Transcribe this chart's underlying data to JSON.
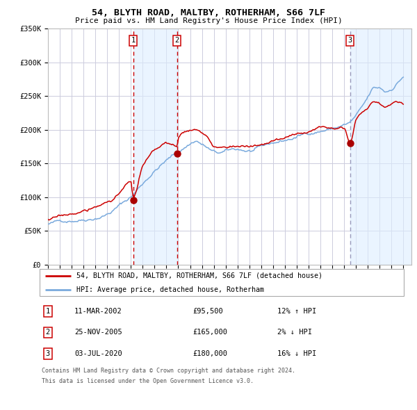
{
  "title": "54, BLYTH ROAD, MALTBY, ROTHERHAM, S66 7LF",
  "subtitle": "Price paid vs. HM Land Registry's House Price Index (HPI)",
  "x_start_year": 1995,
  "x_end_year": 2025,
  "y_min": 0,
  "y_max": 350000,
  "y_ticks": [
    0,
    50000,
    100000,
    150000,
    200000,
    250000,
    300000,
    350000
  ],
  "y_tick_labels": [
    "£0",
    "£50K",
    "£100K",
    "£150K",
    "£200K",
    "£250K",
    "£300K",
    "£350K"
  ],
  "sales": [
    {
      "date_decimal": 2002.19,
      "price": 95500,
      "label": "1"
    },
    {
      "date_decimal": 2005.9,
      "price": 165000,
      "label": "2"
    },
    {
      "date_decimal": 2020.5,
      "price": 180000,
      "label": "3"
    }
  ],
  "sale_dashed_color_1_2": "#cc0000",
  "sale_dashed_color_3": "#9999bb",
  "shade_color": "#ddeeff",
  "shade_alpha": 0.6,
  "hpi_line_color": "#7aaadd",
  "price_line_color": "#cc0000",
  "dot_color": "#aa0000",
  "grid_color": "#ccccdd",
  "background_color": "#ffffff",
  "legend_entry1": "54, BLYTH ROAD, MALTBY, ROTHERHAM, S66 7LF (detached house)",
  "legend_entry2": "HPI: Average price, detached house, Rotherham",
  "table_rows": [
    {
      "num": "1",
      "date": "11-MAR-2002",
      "price": "£95,500",
      "hpi": "12% ↑ HPI"
    },
    {
      "num": "2",
      "date": "25-NOV-2005",
      "price": "£165,000",
      "hpi": "2% ↓ HPI"
    },
    {
      "num": "3",
      "date": "03-JUL-2020",
      "price": "£180,000",
      "hpi": "16% ↓ HPI"
    }
  ],
  "footnote1": "Contains HM Land Registry data © Crown copyright and database right 2024.",
  "footnote2": "This data is licensed under the Open Government Licence v3.0.",
  "hpi_waypoints_x": [
    1995.0,
    1996.0,
    1997.0,
    1998.0,
    1999.0,
    2000.0,
    2001.0,
    2002.0,
    2003.0,
    2004.0,
    2005.0,
    2006.0,
    2007.0,
    2007.5,
    2008.0,
    2008.5,
    2009.0,
    2009.5,
    2010.0,
    2011.0,
    2012.0,
    2013.0,
    2014.0,
    2015.0,
    2016.0,
    2017.0,
    2018.0,
    2019.0,
    2020.0,
    2020.5,
    2021.0,
    2021.5,
    2022.0,
    2022.5,
    2023.0,
    2023.5,
    2024.0,
    2024.5,
    2025.0
  ],
  "hpi_waypoints_y": [
    60000,
    63000,
    67000,
    71000,
    76000,
    83000,
    95000,
    108000,
    128000,
    148000,
    163000,
    175000,
    188000,
    193000,
    188000,
    182000,
    175000,
    173000,
    174000,
    176000,
    174000,
    176000,
    181000,
    185000,
    190000,
    196000,
    201000,
    205000,
    210000,
    213000,
    222000,
    232000,
    245000,
    258000,
    258000,
    253000,
    258000,
    268000,
    278000
  ],
  "price_waypoints_x": [
    1995.0,
    1996.0,
    1997.0,
    1998.0,
    1999.0,
    2000.0,
    2001.0,
    2002.0,
    2002.19,
    2003.0,
    2004.0,
    2005.0,
    2005.9,
    2006.0,
    2006.5,
    2007.0,
    2007.5,
    2008.0,
    2008.5,
    2009.0,
    2009.5,
    2010.0,
    2011.0,
    2012.0,
    2013.0,
    2014.0,
    2015.0,
    2016.0,
    2017.0,
    2018.0,
    2019.0,
    2020.0,
    2020.5,
    2021.0,
    2022.0,
    2022.5,
    2023.0,
    2023.5,
    2024.0,
    2024.5,
    2025.0
  ],
  "price_waypoints_y": [
    67000,
    70000,
    74000,
    78000,
    83000,
    91000,
    104000,
    119000,
    95500,
    140000,
    160000,
    172000,
    165000,
    178000,
    188000,
    192000,
    193000,
    186000,
    178000,
    165000,
    163000,
    165000,
    168000,
    166000,
    168000,
    173000,
    177000,
    182000,
    188000,
    194000,
    198000,
    202000,
    180000,
    212000,
    232000,
    240000,
    238000,
    232000,
    237000,
    242000,
    240000
  ]
}
